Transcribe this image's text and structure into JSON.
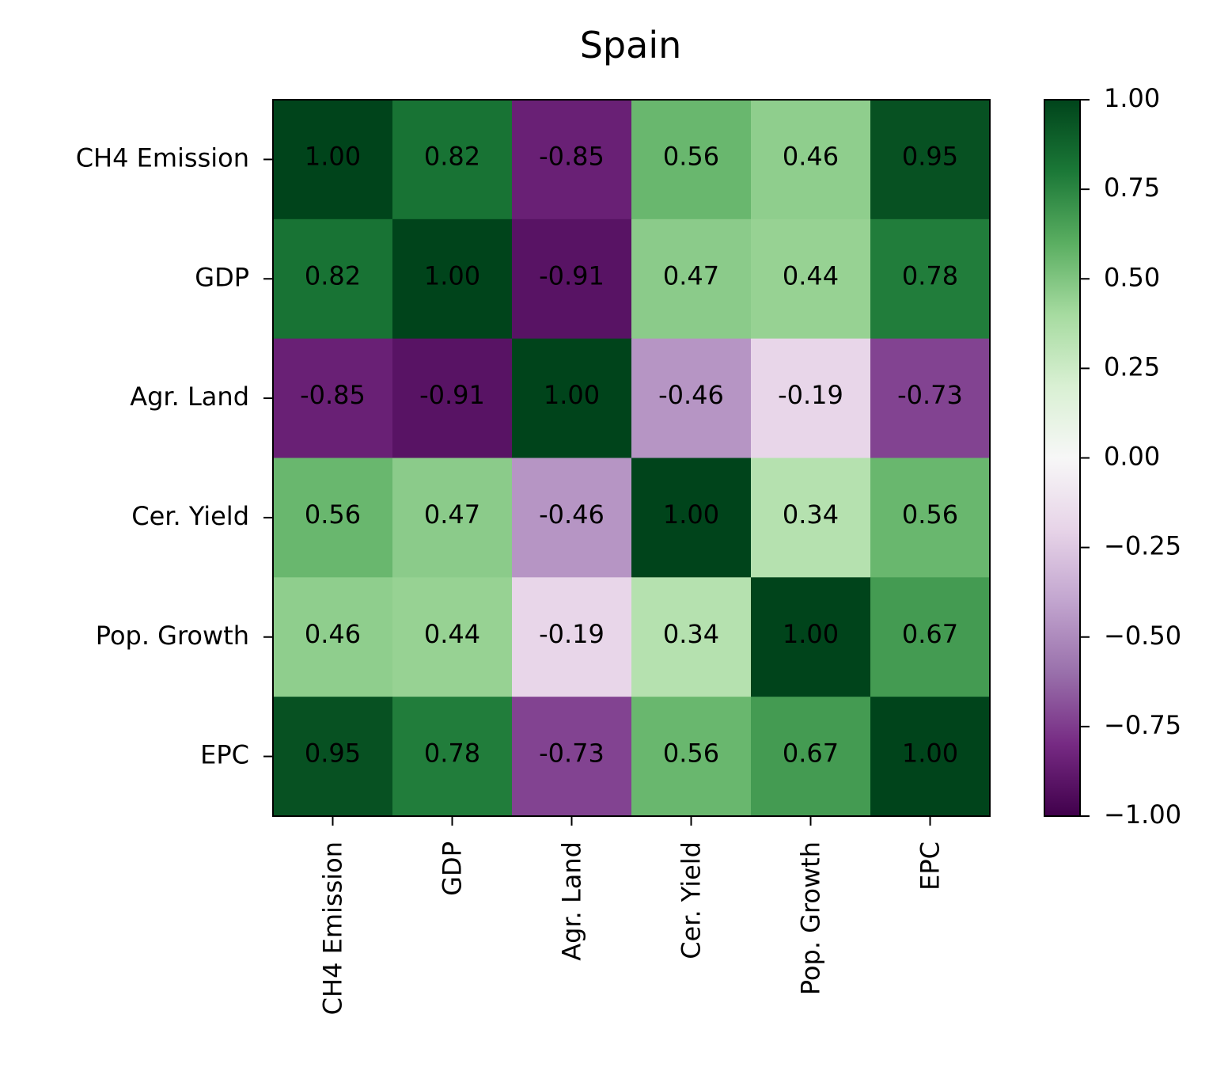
{
  "chart_data": {
    "type": "heatmap",
    "title": "Spain",
    "row_labels": [
      "CH4 Emission",
      "GDP",
      "Agr. Land",
      "Cer. Yield",
      "Pop. Growth",
      "EPC"
    ],
    "col_labels": [
      "CH4 Emission",
      "GDP",
      "Agr. Land",
      "Cer. Yield",
      "Pop. Growth",
      "EPC"
    ],
    "values": [
      [
        1.0,
        0.82,
        -0.85,
        0.56,
        0.46,
        0.95
      ],
      [
        0.82,
        1.0,
        -0.91,
        0.47,
        0.44,
        0.78
      ],
      [
        -0.85,
        -0.91,
        1.0,
        -0.46,
        -0.19,
        -0.73
      ],
      [
        0.56,
        0.47,
        -0.46,
        1.0,
        0.34,
        0.56
      ],
      [
        0.46,
        0.44,
        -0.19,
        0.34,
        1.0,
        0.67
      ],
      [
        0.95,
        0.78,
        -0.73,
        0.56,
        0.67,
        1.0
      ]
    ],
    "value_labels": [
      [
        "1.00",
        "0.82",
        "-0.85",
        "0.56",
        "0.46",
        "0.95"
      ],
      [
        "0.82",
        "1.00",
        "-0.91",
        "0.47",
        "0.44",
        "0.78"
      ],
      [
        "-0.85",
        "-0.91",
        "1.00",
        "-0.46",
        "-0.19",
        "-0.73"
      ],
      [
        "0.56",
        "0.47",
        "-0.46",
        "1.00",
        "0.34",
        "0.56"
      ],
      [
        "0.46",
        "0.44",
        "-0.19",
        "0.34",
        "1.00",
        "0.67"
      ],
      [
        "0.95",
        "0.78",
        "-0.73",
        "0.56",
        "0.67",
        "1.00"
      ]
    ],
    "colormap": "PRGn",
    "vmin": -1.0,
    "vmax": 1.0,
    "colorbar_ticks": [
      1.0,
      0.75,
      0.5,
      0.25,
      0.0,
      -0.25,
      -0.5,
      -0.75,
      -1.0
    ],
    "colorbar_tick_labels": [
      "1.00",
      "0.75",
      "0.50",
      "0.25",
      "0.00",
      "−0.25",
      "−0.50",
      "−0.75",
      "−1.00"
    ],
    "colorbar_colors": [
      "#40004b",
      "#762a83",
      "#9970ab",
      "#c2a5cf",
      "#e7d4e8",
      "#f7f7f7",
      "#d9f0d3",
      "#a6dba0",
      "#5aae61",
      "#1b7837",
      "#00441b"
    ],
    "xtick_rotation": "vertical"
  }
}
